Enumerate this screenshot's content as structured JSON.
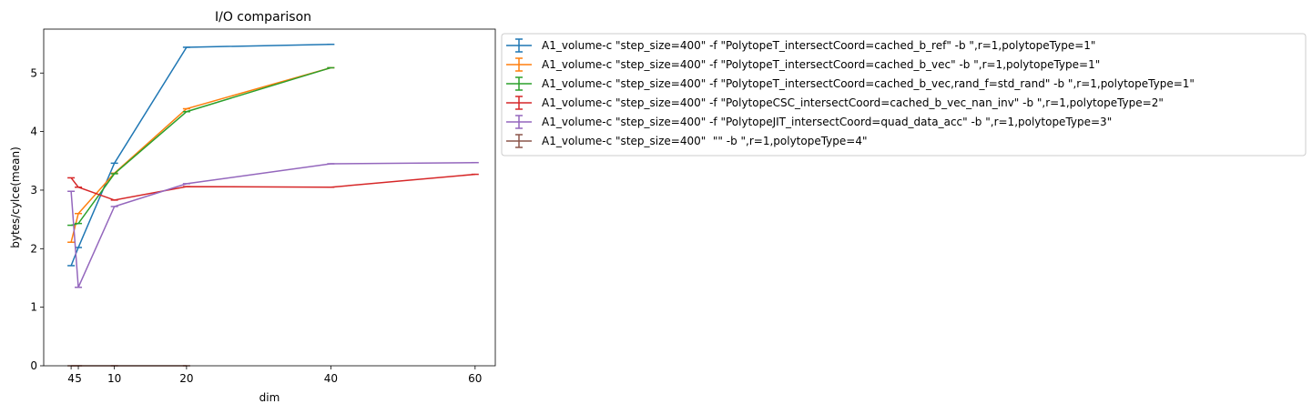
{
  "chart_data": {
    "type": "line",
    "title": "I/O comparison",
    "xlabel": "dim",
    "ylabel": "bytes/cylce(mean)",
    "xlim": [
      0.2,
      62.8
    ],
    "ylim": [
      0,
      5.75
    ],
    "x_ticks": [
      4,
      5,
      10,
      20,
      40,
      60
    ],
    "x_tick_labels": [
      "4",
      "5",
      "10",
      "20",
      "40",
      "60"
    ],
    "y_ticks": [
      0,
      1,
      2,
      3,
      4,
      5
    ],
    "y_tick_labels": [
      "0",
      "1",
      "2",
      "3",
      "4",
      "5"
    ],
    "grid": false,
    "legend_position": "outside-upper-right",
    "series": [
      {
        "name": "A1_volume-c \"step_size=400\" -f \"PolytopeT_intersectCoord=cached_b_ref\" -b \",r=1,polytopeType=1\"",
        "color": "#1f77b4",
        "x": [
          4,
          5,
          10,
          20,
          40
        ],
        "y": [
          1.71,
          2.02,
          3.46,
          5.44,
          5.49
        ]
      },
      {
        "name": "A1_volume-c \"step_size=400\" -f \"PolytopeT_intersectCoord=cached_b_vec\" -b \",r=1,polytopeType=1\"",
        "color": "#ff7f0e",
        "x": [
          4,
          5,
          10,
          20,
          40
        ],
        "y": [
          2.11,
          2.6,
          3.29,
          4.39,
          5.09
        ]
      },
      {
        "name": "A1_volume-c \"step_size=400\" -f \"PolytopeT_intersectCoord=cached_b_vec,rand_f=std_rand\" -b \",r=1,polytopeType=1\"",
        "color": "#2ca02c",
        "x": [
          4,
          5,
          10,
          20,
          40
        ],
        "y": [
          2.4,
          2.43,
          3.28,
          4.34,
          5.09
        ]
      },
      {
        "name": "A1_volume-c \"step_size=400\" -f \"PolytopeCSC_intersectCoord=cached_b_vec_nan_inv\" -b \",r=1,polytopeType=2\"",
        "color": "#d62728",
        "x": [
          4,
          5,
          10,
          20,
          40,
          60
        ],
        "y": [
          3.21,
          3.05,
          2.83,
          3.06,
          3.05,
          3.27
        ]
      },
      {
        "name": "A1_volume-c \"step_size=400\" -f \"PolytopeJIT_intersectCoord=quad_data_acc\" -b \",r=1,polytopeType=3\"",
        "color": "#9467bd",
        "x": [
          4,
          5,
          10,
          20,
          40,
          60
        ],
        "y": [
          2.98,
          1.34,
          2.72,
          3.11,
          3.45,
          3.47
        ]
      },
      {
        "name": "A1_volume-c \"step_size=400\"  \"\" -b \",r=1,polytopeType=4\"",
        "color": "#8c564b",
        "x": [
          4,
          5,
          10,
          20
        ],
        "y": [
          0,
          0,
          0,
          0
        ]
      }
    ]
  }
}
